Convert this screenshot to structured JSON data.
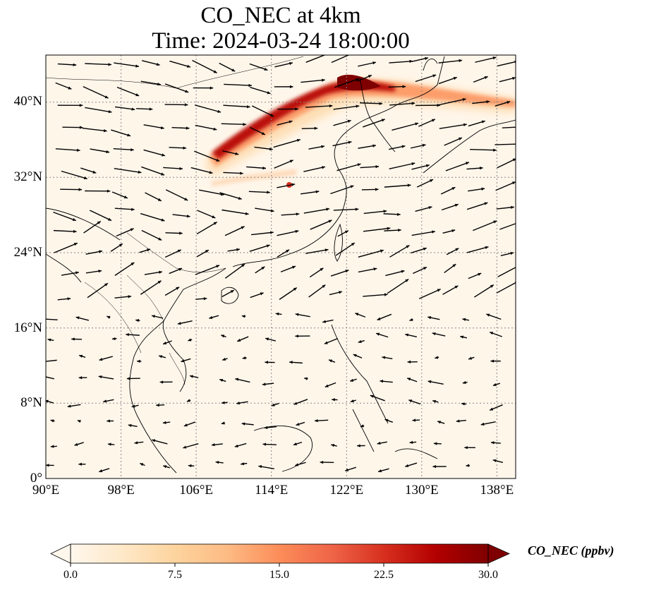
{
  "title": {
    "line1": "CO_NEC at 4km",
    "line2": "Time: 2024-03-24 18:00:00"
  },
  "map": {
    "projection": "PlateCarree",
    "extent": {
      "lon_min": 90,
      "lon_max": 140,
      "lat_min": 0,
      "lat_max": 45
    },
    "gridlines": true,
    "features": [
      "coastlines",
      "country-borders",
      "wind-vectors"
    ]
  },
  "axes": {
    "y_ticks": [
      {
        "label": "40°N",
        "lat": 40
      },
      {
        "label": "32°N",
        "lat": 32
      },
      {
        "label": "24°N",
        "lat": 24
      },
      {
        "label": "16°N",
        "lat": 16
      },
      {
        "label": "8°N",
        "lat": 8
      },
      {
        "label": "0°",
        "lat": 0
      }
    ],
    "x_ticks": [
      {
        "label": "90°E",
        "lon": 90
      },
      {
        "label": "98°E",
        "lon": 98
      },
      {
        "label": "106°E",
        "lon": 106
      },
      {
        "label": "114°E",
        "lon": 114
      },
      {
        "label": "122°E",
        "lon": 122
      },
      {
        "label": "130°E",
        "lon": 130
      },
      {
        "label": "138°E",
        "lon": 138
      }
    ]
  },
  "colorbar": {
    "label": "CO_NEC (ppbv)",
    "colormap": "OrRd",
    "min": 0.0,
    "max": 30.0,
    "extend": "both",
    "ticks": [
      "0.0",
      "7.5",
      "15.0",
      "22.5",
      "30.0"
    ],
    "colors": [
      "#fff7ec",
      "#fee8c8",
      "#fdd49e",
      "#fdbb84",
      "#fc8d59",
      "#ef6548",
      "#d7301f",
      "#b30000",
      "#7f0000"
    ]
  },
  "plume": {
    "description_key": "co-plume-band",
    "peak_lon": 122,
    "peak_lat": 42
  }
}
